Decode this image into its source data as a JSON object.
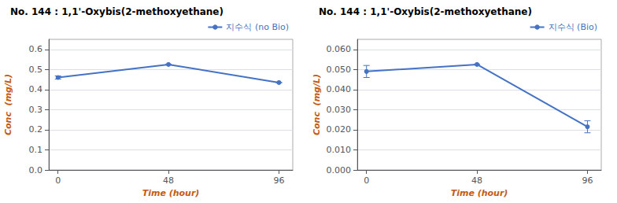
{
  "chart_data": [
    {
      "type": "line",
      "title": "No. 144 : 1,1'-Oxybis(2-methoxyethane)",
      "x": [
        0,
        48,
        96
      ],
      "series": [
        {
          "name": "지수식 (no Bio)",
          "color": "#4472C4",
          "values": [
            0.46,
            0.525,
            0.435
          ],
          "yerr": [
            0.008,
            0.0,
            0.0
          ]
        }
      ],
      "xlabel": "Time (hour)",
      "ylabel": "Conc  (mg/L)",
      "xlim": [
        -4,
        102
      ],
      "xticks": [
        0,
        48,
        96
      ],
      "ylim": [
        0,
        0.65
      ],
      "yticks": [
        {
          "value": 0,
          "label": "0.0"
        },
        0.1,
        0.2,
        0.3,
        0.4,
        0.5,
        0.6
      ],
      "grid": true,
      "legend": "upper right",
      "marker": "circle"
    },
    {
      "type": "line",
      "title": "No. 144 : 1,1'-Oxybis(2-methoxyethane)",
      "x": [
        0,
        48,
        96
      ],
      "series": [
        {
          "name": "지수식 (Bio)",
          "color": "#4472C4",
          "values": [
            0.049,
            0.0525,
            0.0215
          ],
          "yerr": [
            0.003,
            0.0,
            0.003
          ]
        }
      ],
      "xlabel": "Time (hour)",
      "ylabel": "Conc  (mg/L)",
      "xlim": [
        -4,
        102
      ],
      "xticks": [
        0,
        48,
        96
      ],
      "ylim": [
        0,
        0.065
      ],
      "yticks": [
        {
          "value": 0.0,
          "label": "0.000"
        },
        {
          "value": 0.01,
          "label": "0.010"
        },
        {
          "value": 0.02,
          "label": "0.020"
        },
        {
          "value": 0.03,
          "label": "0.030"
        },
        {
          "value": 0.04,
          "label": "0.040"
        },
        {
          "value": 0.05,
          "label": "0.050"
        },
        {
          "value": 0.06,
          "label": "0.060"
        }
      ],
      "grid": true,
      "legend": "upper right",
      "marker": "circle"
    }
  ]
}
